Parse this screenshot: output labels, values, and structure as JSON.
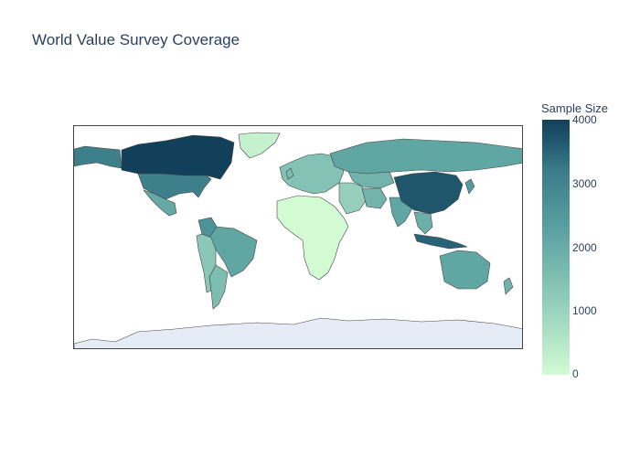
{
  "title": "World Value Survey Coverage",
  "colorbar": {
    "title": "Sample Size",
    "ticks": [
      "4000",
      "3000",
      "2000",
      "1000",
      "0"
    ],
    "range": [
      0,
      4000
    ],
    "colors": [
      "#d2fbd4",
      "#a5dbc2",
      "#7bbcb0",
      "#559c9e",
      "#3a7c89",
      "#235d72",
      "#123f5a"
    ]
  },
  "map": {
    "projection": "equirectangular",
    "no_data_color": "#e5ecf6",
    "border_color": "#444444",
    "regions": [
      {
        "name": "Canada",
        "sample_size": 4000
      },
      {
        "name": "United States",
        "sample_size": 2600
      },
      {
        "name": "Alaska",
        "sample_size": 2600
      },
      {
        "name": "Greenland",
        "sample_size": 200
      },
      {
        "name": "Mexico",
        "sample_size": 1700
      },
      {
        "name": "Brazil",
        "sample_size": 1800
      },
      {
        "name": "Argentina",
        "sample_size": 1300
      },
      {
        "name": "Colombia",
        "sample_size": 2200
      },
      {
        "name": "Russia",
        "sample_size": 1800
      },
      {
        "name": "China",
        "sample_size": 3500
      },
      {
        "name": "India",
        "sample_size": 1800
      },
      {
        "name": "Indonesia",
        "sample_size": 3200
      },
      {
        "name": "Australia",
        "sample_size": 1800
      },
      {
        "name": "Kazakhstan",
        "sample_size": 1500
      },
      {
        "name": "Iran",
        "sample_size": 1500
      },
      {
        "name": "Nigeria",
        "sample_size": 1400
      },
      {
        "name": "Africa (other)",
        "sample_size": 0
      },
      {
        "name": "Europe",
        "sample_size": 1200
      },
      {
        "name": "Antarctica",
        "sample_size": null
      }
    ]
  }
}
